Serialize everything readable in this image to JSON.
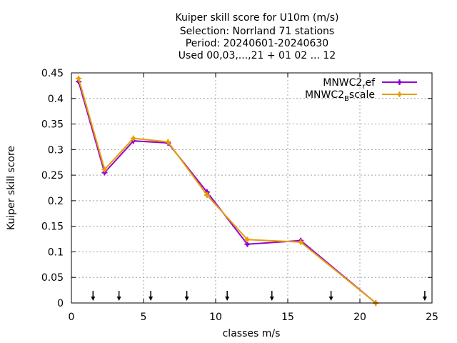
{
  "chart_data": {
    "type": "line",
    "title_lines": [
      "Kuiper skill score  for U10m (m/s)",
      "Selection: Norrland     71 stations",
      "Period: 20240601-20240630",
      "Used 00,03,...,21 + 01 02 ... 12"
    ],
    "xlabel": "classes m/s",
    "ylabel": "Kuiper skill score",
    "xlim": [
      0,
      25
    ],
    "ylim": [
      0,
      0.45
    ],
    "xticks": [
      0,
      5,
      10,
      15,
      20,
      25
    ],
    "yticks": [
      0,
      0.05,
      0.1,
      0.15,
      0.2,
      0.25,
      0.3,
      0.35,
      0.4,
      0.45
    ],
    "xtick_labels": [
      "0",
      "5",
      "10",
      "15",
      "20",
      "25"
    ],
    "ytick_labels": [
      "0",
      "0.05",
      "0.1",
      "0.15",
      "0.2",
      "0.25",
      "0.3",
      "0.35",
      "0.4",
      "0.45"
    ],
    "grid": true,
    "legend_position": "top-right",
    "class_limit_arrows": [
      1.5,
      3.3,
      5.5,
      8.0,
      10.8,
      13.9,
      18.0,
      24.5
    ],
    "series": [
      {
        "name_main": "MNWC2",
        "name_sub": "r",
        "name_rest": "ef",
        "color": "#9400d3",
        "marker": "plus",
        "x": [
          0.5,
          2.3,
          4.3,
          6.7,
          9.4,
          12.2,
          15.9,
          21.1
        ],
        "y": [
          0.433,
          0.255,
          0.317,
          0.313,
          0.217,
          0.115,
          0.122,
          0.0
        ]
      },
      {
        "name_main": "MNWC2",
        "name_sub": "B",
        "name_rest": "scale",
        "color": "#e69f00",
        "marker": "plus",
        "x": [
          0.5,
          2.3,
          4.3,
          6.7,
          9.4,
          12.2,
          15.9,
          21.1
        ],
        "y": [
          0.439,
          0.261,
          0.322,
          0.315,
          0.211,
          0.124,
          0.119,
          0.0
        ]
      }
    ]
  }
}
